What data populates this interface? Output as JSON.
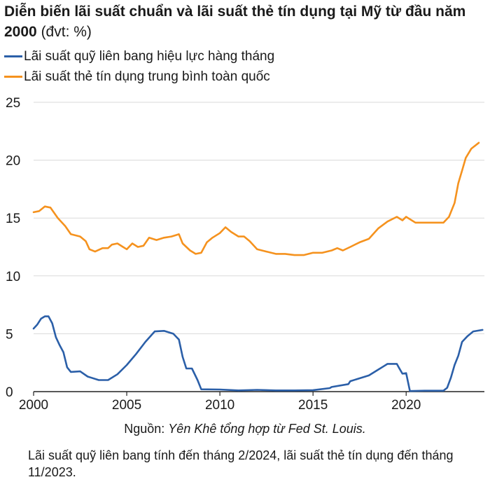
{
  "header": {
    "title": "Diễn biến lãi suất chuẩn và lãi suất thẻ tín dụng tại Mỹ từ đầu năm 2000",
    "unit": "(đvt: %)"
  },
  "footer": {
    "source_prefix": "Nguồn:",
    "source_text": "Yên Khê tổng hợp từ Fed St. Louis.",
    "note": "Lãi suất quỹ liên bang tính đến tháng 2/2024, lãi suất thẻ tín dụng đến tháng 11/2023."
  },
  "colors": {
    "fed": "#2b5fa8",
    "card": "#f5921e",
    "grid": "#d9d9d9",
    "axis": "#222222"
  },
  "chart_data": {
    "type": "line",
    "title": "",
    "xlabel": "",
    "ylabel": "",
    "xlim": [
      2000,
      2024.2
    ],
    "ylim": [
      0,
      25
    ],
    "xticks": [
      2000,
      2005,
      2010,
      2015,
      2020
    ],
    "yticks": [
      0,
      5,
      10,
      15,
      20,
      25
    ],
    "grid": true,
    "legend_position": "top-left",
    "series": [
      {
        "name": "Lãi suất quỹ liên bang hiệu lực hàng tháng",
        "color": "#2b5fa8",
        "x": [
          2000,
          2000.2,
          2000.4,
          2000.6,
          2000.8,
          2001,
          2001.2,
          2001.4,
          2001.6,
          2001.8,
          2002,
          2002.5,
          2002.9,
          2003.5,
          2003.8,
          2004,
          2004.5,
          2005,
          2005.5,
          2006,
          2006.5,
          2007,
          2007.5,
          2007.8,
          2008,
          2008.2,
          2008.5,
          2008.8,
          2009,
          2010,
          2011,
          2012,
          2013,
          2014,
          2015,
          2015.9,
          2016,
          2016.9,
          2017,
          2017.5,
          2018,
          2018.5,
          2018.8,
          2019,
          2019.5,
          2019.6,
          2019.8,
          2020,
          2020.2,
          2021,
          2022,
          2022.2,
          2022.4,
          2022.6,
          2022.8,
          2023,
          2023.3,
          2023.6,
          2024.1
        ],
        "values": [
          5.45,
          5.8,
          6.3,
          6.5,
          6.5,
          5.9,
          4.7,
          4.0,
          3.4,
          2.1,
          1.7,
          1.75,
          1.3,
          1.0,
          1.0,
          1.0,
          1.5,
          2.3,
          3.25,
          4.3,
          5.2,
          5.25,
          5.0,
          4.5,
          3.0,
          2.0,
          2.0,
          1.0,
          0.2,
          0.18,
          0.1,
          0.15,
          0.1,
          0.1,
          0.13,
          0.3,
          0.4,
          0.65,
          0.9,
          1.15,
          1.4,
          1.9,
          2.2,
          2.4,
          2.4,
          2.1,
          1.55,
          1.6,
          0.05,
          0.08,
          0.08,
          0.33,
          1.2,
          2.3,
          3.1,
          4.3,
          4.8,
          5.2,
          5.33
        ]
      },
      {
        "name": "Lãi suất thẻ tín dụng trung bình toàn quốc",
        "color": "#f5921e",
        "x": [
          2000,
          2000.3,
          2000.6,
          2000.9,
          2001.3,
          2001.7,
          2002,
          2002.5,
          2002.8,
          2003,
          2003.3,
          2003.7,
          2004,
          2004.2,
          2004.5,
          2004.8,
          2005,
          2005.3,
          2005.6,
          2005.9,
          2006.2,
          2006.6,
          2007,
          2007.4,
          2007.8,
          2008,
          2008.4,
          2008.7,
          2009,
          2009.3,
          2009.6,
          2010,
          2010.3,
          2010.6,
          2011,
          2011.3,
          2011.6,
          2012,
          2012.5,
          2013,
          2013.5,
          2014,
          2014.5,
          2015,
          2015.5,
          2016,
          2016.3,
          2016.6,
          2017,
          2017.5,
          2018,
          2018.5,
          2019,
          2019.5,
          2019.8,
          2020,
          2020.5,
          2021,
          2021.5,
          2022,
          2022.3,
          2022.6,
          2022.8,
          2023,
          2023.2,
          2023.5,
          2023.9
        ],
        "values": [
          15.5,
          15.6,
          16.0,
          15.9,
          15.0,
          14.3,
          13.6,
          13.4,
          13.0,
          12.3,
          12.1,
          12.4,
          12.4,
          12.7,
          12.8,
          12.5,
          12.3,
          12.8,
          12.5,
          12.6,
          13.3,
          13.1,
          13.3,
          13.4,
          13.6,
          12.8,
          12.2,
          11.9,
          12.0,
          12.9,
          13.3,
          13.7,
          14.2,
          13.8,
          13.4,
          13.4,
          13.0,
          12.3,
          12.1,
          11.9,
          11.9,
          11.8,
          11.8,
          12.0,
          12.0,
          12.2,
          12.4,
          12.2,
          12.5,
          12.9,
          13.2,
          14.1,
          14.7,
          15.1,
          14.8,
          15.1,
          14.6,
          14.6,
          14.6,
          14.6,
          15.1,
          16.3,
          18.0,
          19.1,
          20.2,
          21.0,
          21.5
        ]
      }
    ]
  }
}
